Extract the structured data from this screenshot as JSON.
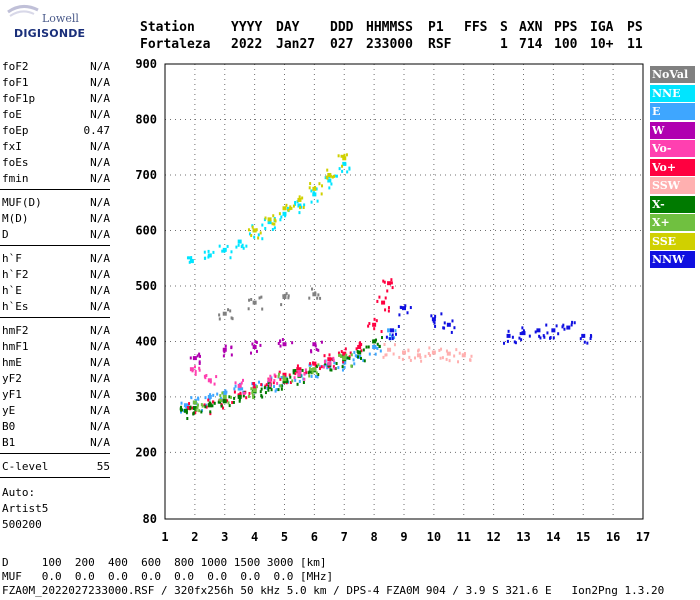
{
  "logo": {
    "line1": "Lowell",
    "line2": "DIGISONDE"
  },
  "header": {
    "row1": [
      {
        "text": "Station",
        "x": 140
      },
      {
        "text": "YYYY",
        "x": 231
      },
      {
        "text": "DAY",
        "x": 276
      },
      {
        "text": "DDD",
        "x": 330
      },
      {
        "text": "HHMMSS",
        "x": 366
      },
      {
        "text": "P1",
        "x": 428
      },
      {
        "text": "FFS",
        "x": 464
      },
      {
        "text": "S",
        "x": 500
      },
      {
        "text": "AXN",
        "x": 519
      },
      {
        "text": "PPS",
        "x": 554
      },
      {
        "text": "IGA",
        "x": 590
      },
      {
        "text": "PS",
        "x": 627
      }
    ],
    "row2": [
      {
        "text": "Fortaleza",
        "x": 140
      },
      {
        "text": "2022",
        "x": 231
      },
      {
        "text": "Jan27",
        "x": 276
      },
      {
        "text": "027",
        "x": 330
      },
      {
        "text": "233000",
        "x": 366
      },
      {
        "text": "RSF",
        "x": 428
      },
      {
        "text": "1",
        "x": 500
      },
      {
        "text": "714",
        "x": 519
      },
      {
        "text": "100",
        "x": 554
      },
      {
        "text": "10+",
        "x": 590
      },
      {
        "text": "11",
        "x": 627
      }
    ]
  },
  "params": {
    "group1": [
      {
        "label": "foF2",
        "value": "N/A"
      },
      {
        "label": "foF1",
        "value": "N/A"
      },
      {
        "label": "foF1p",
        "value": "N/A"
      },
      {
        "label": "foE",
        "value": "N/A"
      },
      {
        "label": "foEp",
        "value": "0.47"
      },
      {
        "label": "fxI",
        "value": "N/A"
      },
      {
        "label": "foEs",
        "value": "N/A"
      },
      {
        "label": "fmin",
        "value": "N/A"
      }
    ],
    "group2": [
      {
        "label": "MUF(D)",
        "value": "N/A"
      },
      {
        "label": "M(D)",
        "value": "N/A"
      },
      {
        "label": "D",
        "value": "N/A"
      }
    ],
    "group3": [
      {
        "label": "h`F",
        "value": "N/A"
      },
      {
        "label": "h`F2",
        "value": "N/A"
      },
      {
        "label": "h`E",
        "value": "N/A"
      },
      {
        "label": "h`Es",
        "value": "N/A"
      }
    ],
    "group4": [
      {
        "label": "hmF2",
        "value": "N/A"
      },
      {
        "label": "hmF1",
        "value": "N/A"
      },
      {
        "label": "hmE",
        "value": "N/A"
      },
      {
        "label": "yF2",
        "value": "N/A"
      },
      {
        "label": "yF1",
        "value": "N/A"
      },
      {
        "label": "yE",
        "value": "N/A"
      },
      {
        "label": "B0",
        "value": "N/A"
      },
      {
        "label": "B1",
        "value": "N/A"
      }
    ],
    "clevel": {
      "label": "C-level",
      "value": "55"
    },
    "auto": [
      "Auto:",
      "Artist5",
      "500200"
    ]
  },
  "legend": [
    {
      "label": "NoVal",
      "color": "#808080"
    },
    {
      "label": "NNE",
      "color": "#00e5ff"
    },
    {
      "label": "E",
      "color": "#3ea6ff"
    },
    {
      "label": "W",
      "color": "#b000b0"
    },
    {
      "label": "Vo-",
      "color": "#ff40b0"
    },
    {
      "label": "Vo+",
      "color": "#ff0040"
    },
    {
      "label": "SSW",
      "color": "#ffb0b0"
    },
    {
      "label": "X-",
      "color": "#007a00"
    },
    {
      "label": "X+",
      "color": "#70c040"
    },
    {
      "label": "SSE",
      "color": "#d0d000"
    },
    {
      "label": "NNW",
      "color": "#1010e0"
    }
  ],
  "footer": {
    "d_row": "D     100  200  400  600  800 1000 1500 3000 [km]",
    "muf_row": "MUF   0.0  0.0  0.0  0.0  0.0  0.0  0.0  0.0 [MHz]",
    "file_row": "FZA0M_2022027233000.RSF / 320fx256h 50 kHz 5.0 km / DPS-4 FZA0M 904 / 3.9 S 321.6 E   Ion2Png 1.3.20"
  },
  "chart_data": {
    "type": "scatter",
    "title": "",
    "xlabel": "",
    "ylabel": "",
    "xlim": [
      1,
      17
    ],
    "ylim": [
      80,
      900
    ],
    "xticks": [
      1,
      2,
      3,
      4,
      5,
      6,
      7,
      8,
      9,
      10,
      11,
      12,
      13,
      14,
      15,
      16,
      17
    ],
    "yticks": [
      80,
      200,
      300,
      400,
      500,
      600,
      700,
      800,
      900
    ],
    "ytick_labels": [
      "80",
      "200",
      "300",
      "400",
      "500",
      "600",
      "700",
      "800",
      "900"
    ],
    "grid": true,
    "legend_placement": "right",
    "series": [
      {
        "name": "E",
        "x": [
          1.7,
          2.0,
          2.5,
          3.0,
          3.5,
          4.0,
          4.5,
          5.0,
          5.5,
          6.0,
          6.5,
          7.0,
          7.5,
          8.0,
          8.5
        ],
        "y": [
          285,
          290,
          300,
          307,
          315,
          320,
          325,
          335,
          340,
          348,
          355,
          362,
          372,
          390,
          420
        ]
      },
      {
        "name": "Vo+",
        "x": [
          1.8,
          2.5,
          3.0,
          3.5,
          4.0,
          4.5,
          5.0,
          5.5,
          6.0,
          6.5,
          7.0,
          7.5,
          8.0,
          8.3,
          8.5
        ],
        "y": [
          280,
          285,
          293,
          303,
          315,
          328,
          340,
          350,
          360,
          368,
          378,
          390,
          430,
          470,
          505
        ]
      },
      {
        "name": "X-",
        "x": [
          1.7,
          2.0,
          2.5,
          3.0,
          3.5,
          4.0,
          4.5,
          5.0,
          5.5,
          6.0,
          6.5,
          7.0,
          7.5,
          8.0
        ],
        "y": [
          275,
          280,
          285,
          292,
          300,
          310,
          318,
          328,
          338,
          348,
          358,
          368,
          380,
          400
        ]
      },
      {
        "name": "NNE",
        "x": [
          1.9,
          2.5,
          3.0,
          3.5,
          4.0,
          4.5,
          5.0,
          5.5,
          6.0,
          6.5,
          7.0
        ],
        "y": [
          545,
          555,
          565,
          580,
          600,
          615,
          630,
          645,
          665,
          690,
          720
        ]
      },
      {
        "name": "SSE",
        "x": [
          4.0,
          4.5,
          5.0,
          5.5,
          6.0,
          6.5,
          7.0
        ],
        "y": [
          600,
          620,
          640,
          655,
          675,
          700,
          730
        ]
      },
      {
        "name": "NNW",
        "x": [
          8.6,
          9.0,
          10.0,
          10.5,
          12.5,
          13.0,
          13.5,
          14.0,
          14.5,
          15.0
        ],
        "y": [
          420,
          460,
          440,
          430,
          410,
          415,
          420,
          420,
          425,
          410
        ]
      },
      {
        "name": "SSW",
        "x": [
          8.5,
          9.0,
          9.5,
          10.0,
          10.5,
          11.0
        ],
        "y": [
          385,
          380,
          375,
          380,
          378,
          375
        ]
      },
      {
        "name": "W",
        "x": [
          2.0,
          3.0,
          4.0,
          5.0,
          6.0
        ],
        "y": [
          370,
          385,
          390,
          395,
          395
        ]
      },
      {
        "name": "Vo-",
        "x": [
          1.9,
          2.5,
          3.5,
          4.5,
          5.5,
          6.5
        ],
        "y": [
          350,
          330,
          320,
          330,
          345,
          360
        ]
      },
      {
        "name": "X+",
        "x": [
          2.0,
          3.0,
          4.0,
          5.0,
          6.0,
          7.0
        ],
        "y": [
          290,
          300,
          312,
          332,
          350,
          370
        ]
      },
      {
        "name": "NoVal",
        "x": [
          3.0,
          4.0,
          5.0,
          6.0
        ],
        "y": [
          450,
          470,
          480,
          485
        ]
      }
    ]
  }
}
